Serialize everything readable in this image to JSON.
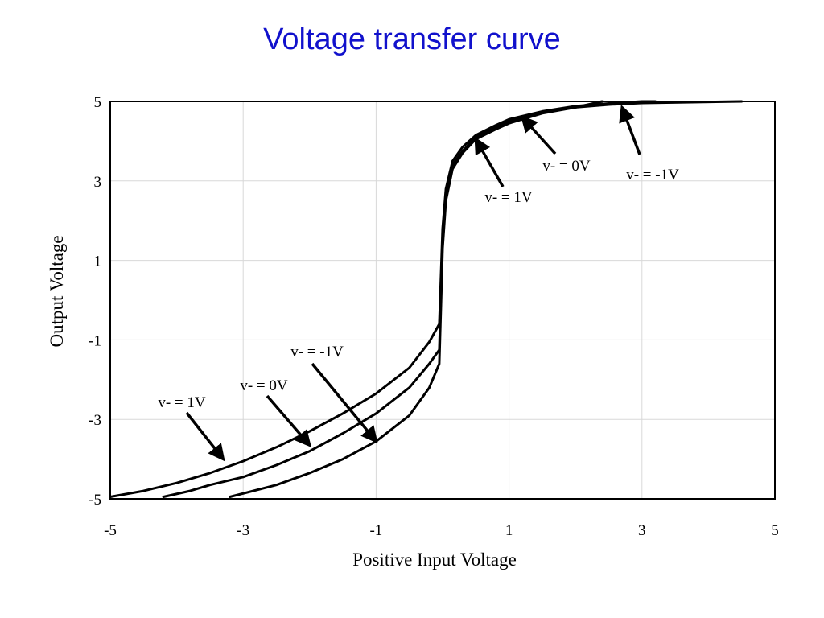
{
  "title": "Voltage transfer curve",
  "chart_data": {
    "type": "line",
    "title": "Voltage transfer curve",
    "xlabel": "Positive Input Voltage",
    "ylabel": "Output Voltage",
    "xlim": [
      -5,
      5
    ],
    "ylim": [
      -5,
      5
    ],
    "xticks": [
      -5,
      -3,
      -1,
      1,
      3,
      5
    ],
    "yticks": [
      -5,
      -3,
      -1,
      1,
      3,
      5
    ],
    "grid": true,
    "series": [
      {
        "x": [
          -5.0,
          -4.5,
          -4.0,
          -3.5,
          -3.0,
          -2.5,
          -2.0,
          -1.5,
          -1.0,
          -0.5,
          -0.2,
          -0.05,
          0.0,
          0.05,
          0.15,
          0.3,
          0.5,
          0.8,
          1.0,
          1.5,
          2.0,
          2.5,
          3.0,
          3.2
        ],
        "y": [
          -4.95,
          -4.8,
          -4.6,
          -4.35,
          -4.05,
          -3.7,
          -3.3,
          -2.85,
          -2.35,
          -1.7,
          -1.05,
          -0.6,
          1.8,
          2.8,
          3.5,
          3.85,
          4.15,
          4.4,
          4.55,
          4.75,
          4.88,
          4.95,
          5.0,
          5.0
        ]
      },
      {
        "x": [
          -4.2,
          -3.8,
          -3.5,
          -3.0,
          -2.5,
          -2.0,
          -1.5,
          -1.0,
          -0.5,
          -0.2,
          -0.05,
          0.0,
          0.05,
          0.15,
          0.3,
          0.5,
          0.8,
          1.0,
          1.5,
          2.0,
          2.5,
          3.0,
          4.5
        ],
        "y": [
          -4.95,
          -4.8,
          -4.65,
          -4.45,
          -4.15,
          -3.8,
          -3.35,
          -2.85,
          -2.2,
          -1.6,
          -1.25,
          1.5,
          2.6,
          3.4,
          3.75,
          4.1,
          4.35,
          4.5,
          4.72,
          4.85,
          4.92,
          4.96,
          5.0
        ]
      },
      {
        "x": [
          -3.2,
          -2.5,
          -2.0,
          -1.5,
          -1.0,
          -0.5,
          -0.2,
          -0.05,
          0.0,
          0.05,
          0.15,
          0.3,
          0.5,
          0.8,
          1.0,
          1.5,
          2.0,
          2.4
        ],
        "y": [
          -4.95,
          -4.65,
          -4.35,
          -4.0,
          -3.55,
          -2.9,
          -2.2,
          -1.6,
          1.3,
          2.5,
          3.3,
          3.7,
          4.05,
          4.3,
          4.45,
          4.7,
          4.85,
          5.0
        ]
      }
    ],
    "annotations": [
      {
        "text": "v- = 1V",
        "arrow_to": [
          -3.3,
          -4.0
        ]
      },
      {
        "text": "v- = 0V",
        "arrow_to": [
          -2.0,
          -3.65
        ]
      },
      {
        "text": "v- = -1V",
        "arrow_to": [
          -1.0,
          -3.55
        ]
      },
      {
        "text": "v- = 1V",
        "arrow_to": [
          0.5,
          4.05
        ]
      },
      {
        "text": "v- = 0V",
        "arrow_to": [
          1.2,
          4.6
        ]
      },
      {
        "text": "v- = -1V",
        "arrow_to": [
          2.7,
          4.85
        ]
      }
    ]
  }
}
